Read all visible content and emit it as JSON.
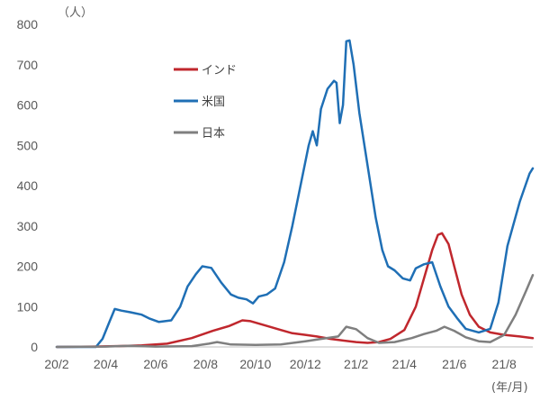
{
  "chart_data": {
    "type": "line",
    "y_unit_label": "（人）",
    "x_unit_label": "(年/月)",
    "ylim": [
      0,
      800
    ],
    "y_ticks": [
      0,
      100,
      200,
      300,
      400,
      500,
      600,
      700,
      800
    ],
    "x_range": [
      "2020-02-01",
      "2021-09-05"
    ],
    "x_tick_labels": [
      "20/2",
      "20/4",
      "20/6",
      "20/8",
      "20/10",
      "20/12",
      "21/2",
      "21/4",
      "21/6",
      "21/8"
    ],
    "x_tick_dates": [
      "2020-02-01",
      "2020-04-01",
      "2020-06-01",
      "2020-08-01",
      "2020-10-01",
      "2020-12-01",
      "2021-02-01",
      "2021-04-01",
      "2021-06-01",
      "2021-08-01"
    ],
    "grid": false,
    "legend_position": "upper-left inside plot",
    "series": [
      {
        "name": "インド",
        "color": "#c0272d",
        "points": [
          [
            "2020-02-01",
            0
          ],
          [
            "2020-03-15",
            1
          ],
          [
            "2020-04-15",
            2
          ],
          [
            "2020-05-15",
            4
          ],
          [
            "2020-06-15",
            8
          ],
          [
            "2020-07-15",
            22
          ],
          [
            "2020-08-10",
            40
          ],
          [
            "2020-08-30",
            52
          ],
          [
            "2020-09-15",
            66
          ],
          [
            "2020-09-25",
            64
          ],
          [
            "2020-10-15",
            52
          ],
          [
            "2020-11-01",
            42
          ],
          [
            "2020-11-15",
            34
          ],
          [
            "2020-12-01",
            30
          ],
          [
            "2020-12-15",
            26
          ],
          [
            "2021-01-01",
            20
          ],
          [
            "2021-01-15",
            16
          ],
          [
            "2021-02-01",
            12
          ],
          [
            "2021-02-15",
            10
          ],
          [
            "2021-03-01",
            12
          ],
          [
            "2021-03-15",
            20
          ],
          [
            "2021-04-01",
            42
          ],
          [
            "2021-04-15",
            100
          ],
          [
            "2021-04-25",
            170
          ],
          [
            "2021-05-05",
            240
          ],
          [
            "2021-05-12",
            278
          ],
          [
            "2021-05-17",
            282
          ],
          [
            "2021-05-25",
            255
          ],
          [
            "2021-06-01",
            200
          ],
          [
            "2021-06-10",
            130
          ],
          [
            "2021-06-20",
            80
          ],
          [
            "2021-07-01",
            50
          ],
          [
            "2021-07-15",
            36
          ],
          [
            "2021-08-01",
            30
          ],
          [
            "2021-08-20",
            26
          ],
          [
            "2021-09-05",
            22
          ]
        ]
      },
      {
        "name": "米国",
        "color": "#1f6fb5",
        "points": [
          [
            "2020-02-01",
            0
          ],
          [
            "2020-03-20",
            0
          ],
          [
            "2020-03-28",
            20
          ],
          [
            "2020-04-05",
            60
          ],
          [
            "2020-04-12",
            94
          ],
          [
            "2020-04-20",
            90
          ],
          [
            "2020-05-01",
            86
          ],
          [
            "2020-05-15",
            80
          ],
          [
            "2020-05-25",
            70
          ],
          [
            "2020-06-05",
            62
          ],
          [
            "2020-06-20",
            66
          ],
          [
            "2020-07-01",
            100
          ],
          [
            "2020-07-10",
            150
          ],
          [
            "2020-07-20",
            180
          ],
          [
            "2020-07-28",
            200
          ],
          [
            "2020-08-08",
            196
          ],
          [
            "2020-08-20",
            160
          ],
          [
            "2020-09-01",
            130
          ],
          [
            "2020-09-10",
            122
          ],
          [
            "2020-09-20",
            118
          ],
          [
            "2020-09-28",
            108
          ],
          [
            "2020-10-05",
            125
          ],
          [
            "2020-10-15",
            130
          ],
          [
            "2020-10-25",
            145
          ],
          [
            "2020-11-05",
            210
          ],
          [
            "2020-11-15",
            300
          ],
          [
            "2020-11-25",
            400
          ],
          [
            "2020-12-05",
            500
          ],
          [
            "2020-12-10",
            535
          ],
          [
            "2020-12-15",
            500
          ],
          [
            "2020-12-20",
            590
          ],
          [
            "2020-12-28",
            640
          ],
          [
            "2021-01-05",
            660
          ],
          [
            "2021-01-08",
            655
          ],
          [
            "2021-01-12",
            555
          ],
          [
            "2021-01-16",
            600
          ],
          [
            "2021-01-20",
            758
          ],
          [
            "2021-01-24",
            760
          ],
          [
            "2021-01-29",
            700
          ],
          [
            "2021-02-05",
            580
          ],
          [
            "2021-02-15",
            450
          ],
          [
            "2021-02-25",
            320
          ],
          [
            "2021-03-05",
            240
          ],
          [
            "2021-03-12",
            200
          ],
          [
            "2021-03-20",
            190
          ],
          [
            "2021-03-30",
            170
          ],
          [
            "2021-04-08",
            165
          ],
          [
            "2021-04-15",
            195
          ],
          [
            "2021-04-25",
            205
          ],
          [
            "2021-05-05",
            210
          ],
          [
            "2021-05-15",
            150
          ],
          [
            "2021-05-25",
            100
          ],
          [
            "2021-06-05",
            70
          ],
          [
            "2021-06-15",
            45
          ],
          [
            "2021-07-01",
            36
          ],
          [
            "2021-07-15",
            45
          ],
          [
            "2021-07-25",
            110
          ],
          [
            "2021-08-05",
            250
          ],
          [
            "2021-08-20",
            360
          ],
          [
            "2021-09-01",
            430
          ],
          [
            "2021-09-05",
            443
          ]
        ]
      },
      {
        "name": "日本",
        "color": "#7f7f7f",
        "points": [
          [
            "2020-02-01",
            0
          ],
          [
            "2020-04-01",
            1
          ],
          [
            "2020-05-01",
            3
          ],
          [
            "2020-06-01",
            1
          ],
          [
            "2020-07-15",
            2
          ],
          [
            "2020-08-05",
            8
          ],
          [
            "2020-08-15",
            12
          ],
          [
            "2020-09-01",
            6
          ],
          [
            "2020-10-01",
            5
          ],
          [
            "2020-11-01",
            6
          ],
          [
            "2020-12-01",
            14
          ],
          [
            "2020-12-20",
            20
          ],
          [
            "2021-01-10",
            26
          ],
          [
            "2021-01-20",
            50
          ],
          [
            "2021-02-01",
            44
          ],
          [
            "2021-02-15",
            22
          ],
          [
            "2021-03-01",
            10
          ],
          [
            "2021-03-20",
            12
          ],
          [
            "2021-04-10",
            22
          ],
          [
            "2021-04-25",
            32
          ],
          [
            "2021-05-10",
            40
          ],
          [
            "2021-05-20",
            50
          ],
          [
            "2021-06-01",
            40
          ],
          [
            "2021-06-15",
            24
          ],
          [
            "2021-07-01",
            14
          ],
          [
            "2021-07-15",
            12
          ],
          [
            "2021-08-01",
            30
          ],
          [
            "2021-08-15",
            80
          ],
          [
            "2021-08-28",
            140
          ],
          [
            "2021-09-05",
            178
          ]
        ]
      }
    ]
  }
}
